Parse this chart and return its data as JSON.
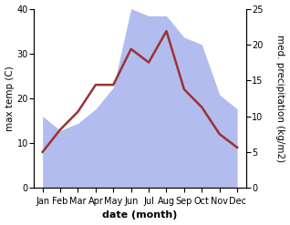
{
  "months": [
    "Jan",
    "Feb",
    "Mar",
    "Apr",
    "May",
    "Jun",
    "Jul",
    "Aug",
    "Sep",
    "Oct",
    "Nov",
    "Dec"
  ],
  "month_positions": [
    0,
    1,
    2,
    3,
    4,
    5,
    6,
    7,
    8,
    9,
    10,
    11
  ],
  "temperature": [
    8,
    13,
    17,
    23,
    23,
    31,
    28,
    35,
    22,
    18,
    12,
    9
  ],
  "precipitation": [
    10,
    8,
    9,
    11,
    14,
    25,
    24,
    24,
    21,
    20,
    13,
    11
  ],
  "temp_color": "#993333",
  "precip_color_fill": "#b3bcee",
  "title": "",
  "xlabel": "date (month)",
  "ylabel_left": "max temp (C)",
  "ylabel_right": "med. precipitation (kg/m2)",
  "ylim_left": [
    0,
    40
  ],
  "ylim_right": [
    0,
    25
  ],
  "yticks_left": [
    0,
    10,
    20,
    30,
    40
  ],
  "yticks_right": [
    0,
    5,
    10,
    15,
    20,
    25
  ],
  "background_color": "#ffffff",
  "temp_linewidth": 1.8,
  "xlabel_fontsize": 8,
  "xlabel_fontweight": "bold",
  "ylabel_fontsize": 7.5,
  "tick_fontsize": 7
}
